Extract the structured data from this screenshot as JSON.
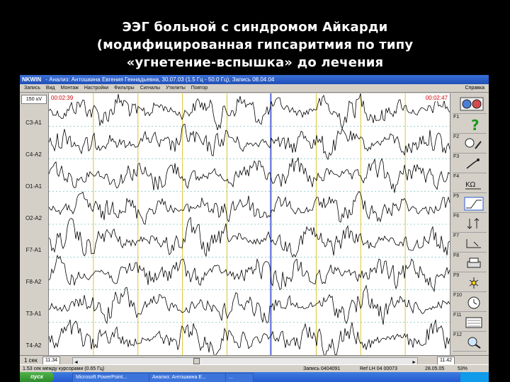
{
  "slide": {
    "title_lines": [
      "ЭЭГ больной с синдромом Айкарди",
      "(модифицированная гипсаритмия по типу",
      "«угнетение-вспышка» до лечения"
    ]
  },
  "window": {
    "app_name": "NKWIN",
    "title": "- Анализ: Антошкина Евгения Геннадьевна, 30.07.03 (1.5 Гц - 50.0 Гц), Запись 08.04.04",
    "menu": [
      "Запись",
      "Вид",
      "Монтаж",
      "Настройки",
      "Фильтры",
      "Сигналы",
      "Утилиты",
      "Повтор"
    ],
    "help_label": "Справка"
  },
  "eeg": {
    "scale": "150 uV",
    "time_start": "00:02:39",
    "time_end": "00:02:47",
    "channels": [
      "C3-A1",
      "C4-A2",
      "O1-A1",
      "O2-A2",
      "F7-A1",
      "F8-A2",
      "T3-A1",
      "T4-A2"
    ]
  },
  "fkeys": [
    {
      "key": "F1",
      "icon": "help-icon"
    },
    {
      "key": "F2",
      "icon": "patient-icon"
    },
    {
      "key": "F3",
      "icon": "probe-icon"
    },
    {
      "key": "F4",
      "icon": "kiloohm-icon"
    },
    {
      "key": "F5",
      "icon": "wave-icon"
    },
    {
      "key": "F6",
      "icon": "arrows-icon"
    },
    {
      "key": "F7",
      "icon": "cursor-icon"
    },
    {
      "key": "F8",
      "icon": "print-icon"
    },
    {
      "key": "F9",
      "icon": "photic-icon"
    },
    {
      "key": "F10",
      "icon": "clock-icon"
    },
    {
      "key": "F11",
      "icon": "montage-icon"
    },
    {
      "key": "F12",
      "icon": "zoom-icon"
    }
  ],
  "scroll": {
    "sec_label": "1 сек",
    "start_value": "11.34",
    "end_value": "11.42"
  },
  "status": {
    "cells": [
      "1.53 сек между курсорами (0.65 Гц)",
      "Запись 0404091",
      "Ref LH 04 00073",
      "28.05.05",
      "53%"
    ]
  },
  "taskbar": {
    "start_label": "пуск",
    "tasks": [
      "Microsoft PowerPoint...",
      "Анализ: Антошкина Е...",
      "..."
    ],
    "clock": "  "
  },
  "colors": {
    "trace": "#000000",
    "time_marker": "#d00000",
    "grid_gold": "#d4b800",
    "grid_blue": "#2033c8",
    "channel_separator": "#3aa0a0"
  }
}
